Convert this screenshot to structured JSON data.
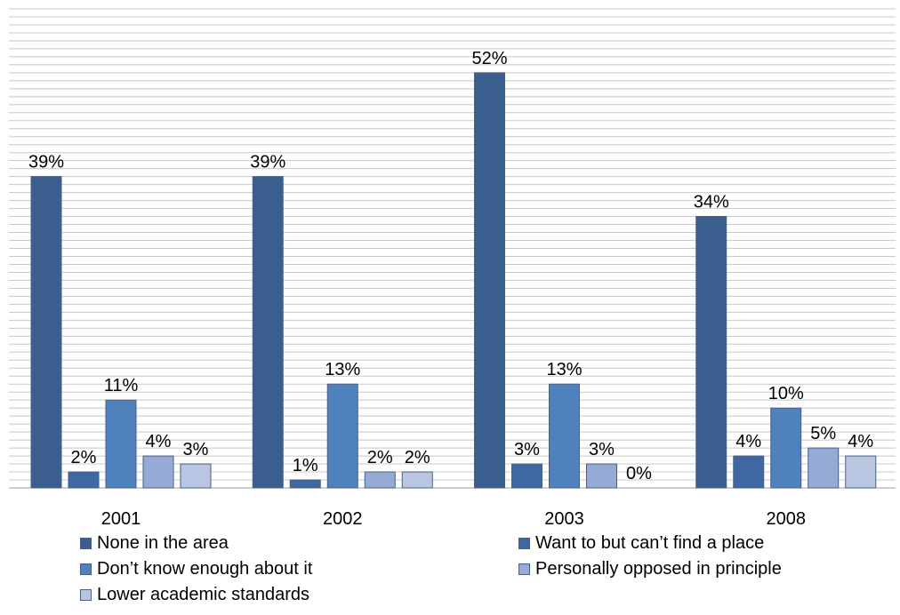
{
  "chart_data": {
    "type": "bar",
    "categories": [
      "2001",
      "2002",
      "2003",
      "2008"
    ],
    "series": [
      {
        "name": "None in the area",
        "values": [
          39,
          39,
          52,
          34
        ],
        "labels": [
          "39%",
          "39%",
          "52%",
          "34%"
        ],
        "color": "#3A5F8F"
      },
      {
        "name": "Want to but can’t find a place",
        "values": [
          2,
          1,
          3,
          4
        ],
        "labels": [
          "2%",
          "1%",
          "3%",
          "4%"
        ],
        "color": "#3F67A1"
      },
      {
        "name": "Don’t know enough about it",
        "values": [
          11,
          13,
          13,
          10
        ],
        "labels": [
          "11%",
          "13%",
          "13%",
          "10%"
        ],
        "color": "#4F81BD"
      },
      {
        "name": "Personally opposed in principle",
        "values": [
          4,
          2,
          3,
          5
        ],
        "labels": [
          "4%",
          "2%",
          "3%",
          "5%"
        ],
        "color": "#95AAD4"
      },
      {
        "name": "Lower academic standards",
        "values": [
          3,
          2,
          0,
          4
        ],
        "labels": [
          "3%",
          "2%",
          "0%",
          "4%"
        ],
        "color": "#B8C6E2"
      }
    ],
    "ylim": [
      0,
      60
    ],
    "grid": true,
    "legend_position": "bottom"
  }
}
